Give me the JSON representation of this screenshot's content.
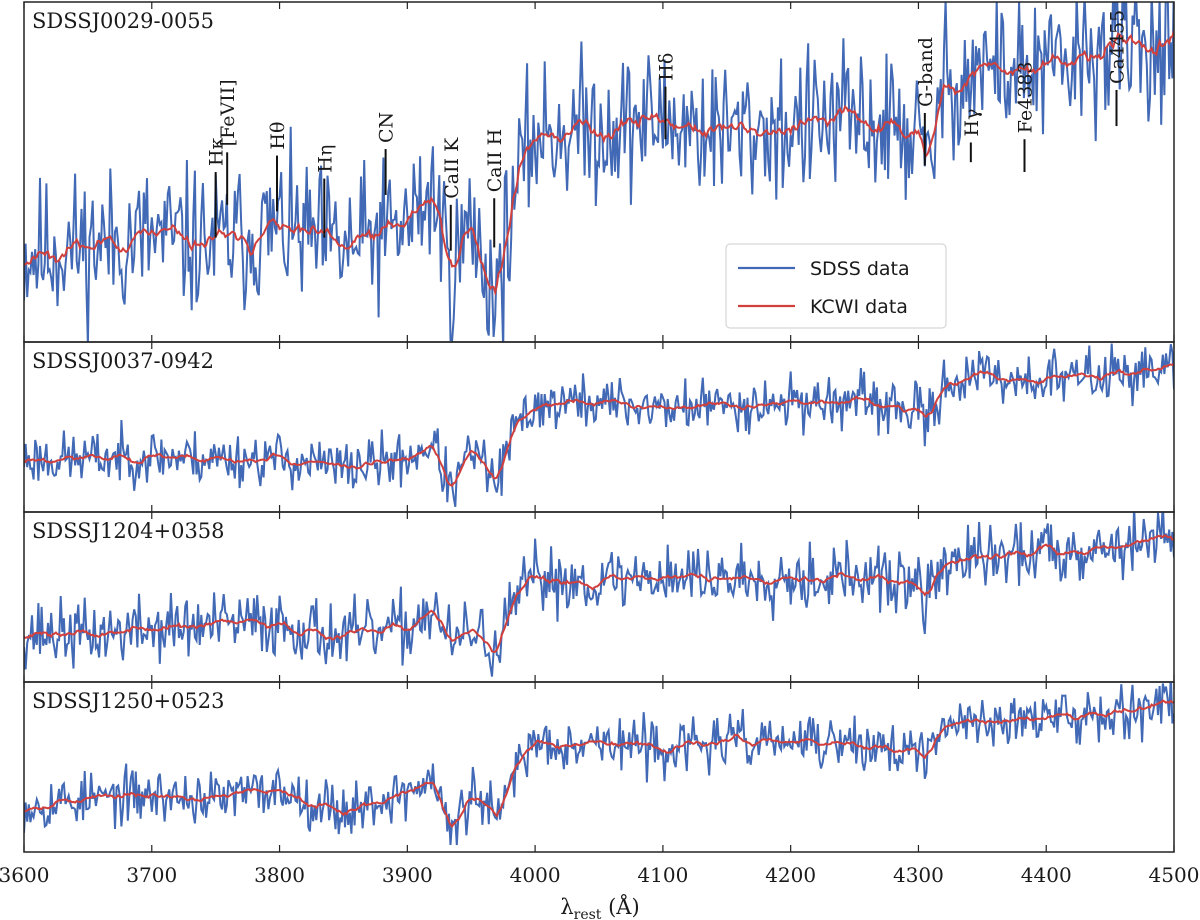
{
  "chart_data": {
    "type": "line",
    "xlabel": "λrest (Å)",
    "xlabel_main": "λ",
    "xlabel_sub": "rest",
    "xlabel_unit": " (Å)",
    "xlim": [
      3600,
      4500
    ],
    "xticks": [
      3600,
      3700,
      3800,
      3900,
      4000,
      4100,
      4200,
      4300,
      4400,
      4500
    ],
    "grid": false,
    "legend": {
      "placement": "lower-right of top panel",
      "entries": [
        {
          "name": "SDSS data",
          "color": "#4169b5"
        },
        {
          "name": "KCWI data",
          "color": "#d1403d"
        }
      ]
    },
    "colors": {
      "sdss": "#4169b5",
      "kcwi": "#d1403d",
      "axes": "#222222"
    },
    "panels": [
      {
        "title": "SDSSJ0029-0055",
        "noise": 0.16,
        "depth": 1.0,
        "seed": 11,
        "sdss_continuum_x": [
          3600,
          3650,
          3700,
          3750,
          3800,
          3850,
          3900,
          3920,
          3935,
          3950,
          3965,
          3970,
          3985,
          4000,
          4050,
          4100,
          4150,
          4200,
          4250,
          4300,
          4305,
          4320,
          4350,
          4400,
          4450,
          4500
        ],
        "sdss_continuum_y": [
          0.25,
          0.28,
          0.3,
          0.28,
          0.33,
          0.26,
          0.34,
          0.44,
          0.2,
          0.34,
          0.16,
          0.14,
          0.45,
          0.62,
          0.64,
          0.66,
          0.62,
          0.64,
          0.66,
          0.62,
          0.48,
          0.76,
          0.82,
          0.8,
          0.88,
          0.9
        ]
      },
      {
        "title": "SDSSJ0037-0942",
        "noise": 0.12,
        "depth": 1.0,
        "seed": 23,
        "sdss_continuum_x": [
          3600,
          3650,
          3700,
          3750,
          3800,
          3850,
          3900,
          3920,
          3935,
          3950,
          3965,
          3970,
          3985,
          4000,
          4050,
          4100,
          4150,
          4200,
          4250,
          4300,
          4305,
          4320,
          4350,
          4400,
          4450,
          4500
        ],
        "sdss_continuum_y": [
          0.3,
          0.3,
          0.32,
          0.3,
          0.3,
          0.24,
          0.3,
          0.4,
          0.08,
          0.36,
          0.2,
          0.14,
          0.5,
          0.64,
          0.66,
          0.62,
          0.64,
          0.66,
          0.66,
          0.6,
          0.5,
          0.78,
          0.82,
          0.8,
          0.84,
          0.88
        ]
      },
      {
        "title": "SDSSJ1204+0358",
        "noise": 0.15,
        "depth": 1.0,
        "seed": 37,
        "sdss_continuum_x": [
          3600,
          3650,
          3700,
          3750,
          3800,
          3850,
          3900,
          3920,
          3935,
          3950,
          3965,
          3970,
          3985,
          4000,
          4050,
          4100,
          4150,
          4200,
          4250,
          4300,
          4305,
          4320,
          4350,
          4400,
          4450,
          4500
        ],
        "sdss_continuum_y": [
          0.28,
          0.26,
          0.3,
          0.32,
          0.34,
          0.24,
          0.3,
          0.44,
          0.18,
          0.3,
          0.2,
          0.14,
          0.48,
          0.62,
          0.6,
          0.64,
          0.62,
          0.64,
          0.62,
          0.58,
          0.46,
          0.72,
          0.74,
          0.8,
          0.82,
          0.88
        ]
      },
      {
        "title": "SDSSJ1250+0523",
        "noise": 0.12,
        "depth": 1.0,
        "seed": 53,
        "sdss_continuum_x": [
          3600,
          3650,
          3700,
          3750,
          3800,
          3850,
          3900,
          3920,
          3935,
          3950,
          3965,
          3970,
          3985,
          4000,
          4050,
          4100,
          4150,
          4200,
          4250,
          4300,
          4305,
          4320,
          4350,
          4400,
          4450,
          4500
        ],
        "sdss_continuum_y": [
          0.26,
          0.3,
          0.32,
          0.3,
          0.36,
          0.22,
          0.34,
          0.42,
          0.08,
          0.32,
          0.24,
          0.12,
          0.52,
          0.66,
          0.66,
          0.62,
          0.66,
          0.66,
          0.64,
          0.6,
          0.5,
          0.76,
          0.8,
          0.8,
          0.86,
          0.9
        ]
      }
    ],
    "line_markers": [
      {
        "label": "Hκ",
        "wavelength": 3750,
        "y_top": 0.5,
        "y_bottom": 0.3
      },
      {
        "label": "[FeVII]",
        "wavelength": 3759,
        "y_top": 0.56,
        "y_bottom": 0.4
      },
      {
        "label": "Hθ",
        "wavelength": 3798,
        "y_top": 0.55,
        "y_bottom": 0.38
      },
      {
        "label": "Hη",
        "wavelength": 3835,
        "y_top": 0.48,
        "y_bottom": 0.3
      },
      {
        "label": "CN",
        "wavelength": 3883,
        "y_top": 0.57,
        "y_bottom": 0.43
      },
      {
        "label": "CaII K",
        "wavelength": 3934,
        "y_top": 0.4,
        "y_bottom": 0.26
      },
      {
        "label": "CaII H",
        "wavelength": 3968,
        "y_top": 0.42,
        "y_bottom": 0.27
      },
      {
        "label": "Hδ",
        "wavelength": 4102,
        "y_top": 0.76,
        "y_bottom": 0.6
      },
      {
        "label": "G-band",
        "wavelength": 4305,
        "y_top": 0.68,
        "y_bottom": 0.52
      },
      {
        "label": "Hγ",
        "wavelength": 4341,
        "y_top": 0.59,
        "y_bottom": 0.53
      },
      {
        "label": "Fe4383",
        "wavelength": 4383,
        "y_top": 0.6,
        "y_bottom": 0.5
      },
      {
        "label": "Ca4455",
        "wavelength": 4455,
        "y_top": 0.75,
        "y_bottom": 0.64
      }
    ]
  }
}
